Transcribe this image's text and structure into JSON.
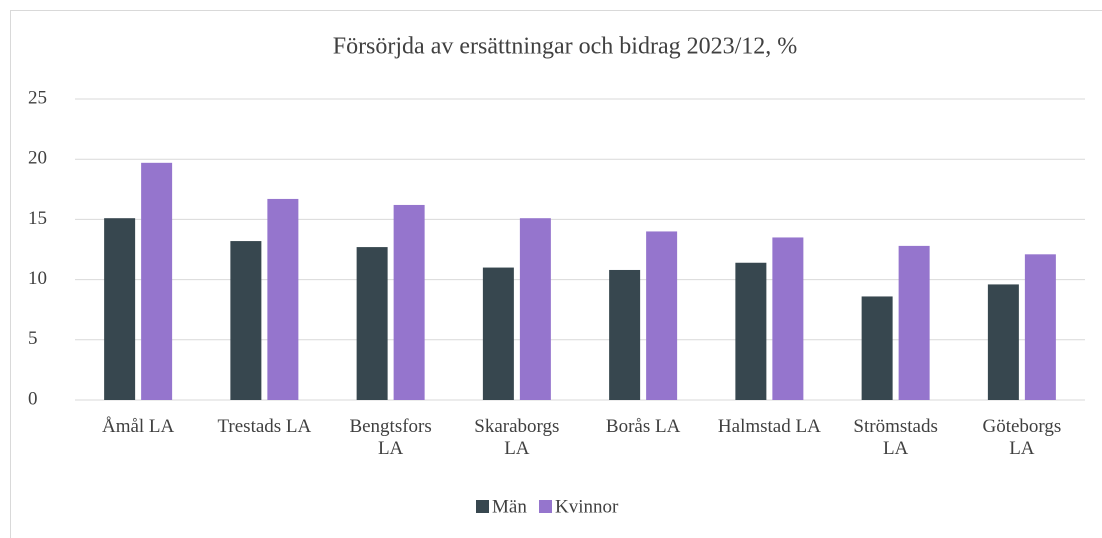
{
  "chart_data": {
    "type": "bar",
    "title": "Försörjda av ersättningar och bidrag 2023/12, %",
    "categories": [
      "Åmål LA",
      "Trestads LA",
      "Bengtsfors LA",
      "Skaraborgs LA",
      "Borås LA",
      "Halmstad LA",
      "Strömstads LA",
      "Göteborgs LA"
    ],
    "series": [
      {
        "name": "Män",
        "color": "#37474f",
        "values": [
          15.1,
          13.2,
          12.7,
          11.0,
          10.8,
          11.4,
          8.6,
          9.6
        ]
      },
      {
        "name": "Kvinnor",
        "color": "#9575cd",
        "values": [
          19.7,
          16.7,
          16.2,
          15.1,
          14.0,
          13.5,
          12.8,
          12.1
        ]
      }
    ],
    "ylim": [
      0,
      25
    ],
    "yticks": [
      0,
      5,
      10,
      15,
      20,
      25
    ],
    "grid": true,
    "legend": "bottom"
  }
}
